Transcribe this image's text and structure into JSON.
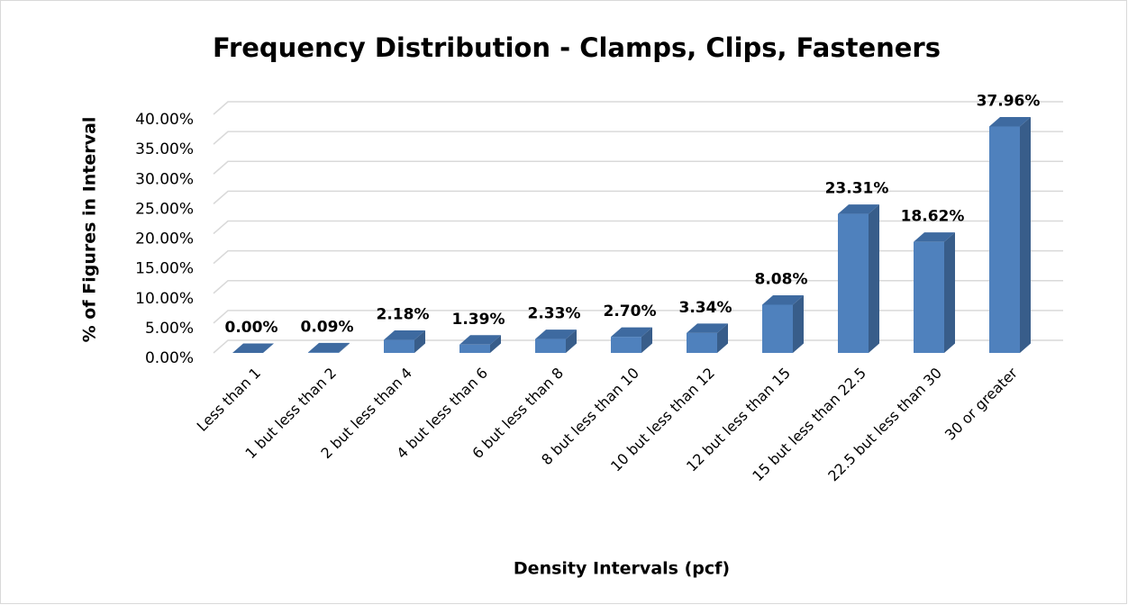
{
  "chart_data": {
    "type": "bar3d",
    "title": "Frequency Distribution - Clamps, Clips, Fasteners",
    "xlabel": "Density Intervals (pcf)",
    "ylabel": "% of Figures in Interval",
    "categories": [
      "Less than 1",
      "1 but less than 2",
      "2 but less than 4",
      "4 but less than 6",
      "6 but less than 8",
      "8 but less than 10",
      "10 but less than 12",
      "12 but less than 15",
      "15 but less than 22.5",
      "22.5 but less than 30",
      "30 or greater"
    ],
    "values": [
      0.0,
      0.09,
      2.18,
      1.39,
      2.33,
      2.7,
      3.34,
      8.08,
      23.31,
      18.62,
      37.96
    ],
    "value_labels": [
      "0.00%",
      "0.09%",
      "2.18%",
      "1.39%",
      "2.33%",
      "2.70%",
      "3.34%",
      "8.08%",
      "23.31%",
      "18.62%",
      "37.96%"
    ],
    "color": "#4f81bd",
    "ylim": [
      0,
      40
    ],
    "yticks": [
      {
        "value": 0,
        "label": "0.00%"
      },
      {
        "value": 5,
        "label": "5.00%"
      },
      {
        "value": 10,
        "label": "10.00%"
      },
      {
        "value": 15,
        "label": "15.00%"
      },
      {
        "value": 20,
        "label": "20.00%"
      },
      {
        "value": 25,
        "label": "25.00%"
      },
      {
        "value": 30,
        "label": "30.00%"
      },
      {
        "value": 35,
        "label": "35.00%"
      },
      {
        "value": 40,
        "label": "40.00%"
      }
    ],
    "grid": true
  }
}
